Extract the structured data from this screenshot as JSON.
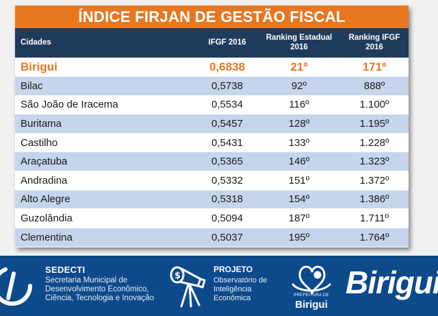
{
  "title": "ÍNDICE FIRJAN DE GESTÃO FISCAL",
  "columns": {
    "cidades": "Cidades",
    "ifgf": "IFGF 2016",
    "ranking_estadual": [
      "Ranking Estadual",
      "2016"
    ],
    "ranking_ifgf": [
      "Ranking IFGF",
      "2016"
    ]
  },
  "rows": [
    {
      "city": "Birigui",
      "ifgf": "0,6838",
      "estadual": "21º",
      "ranking": "171º"
    },
    {
      "city": "Bilac",
      "ifgf": "0,5738",
      "estadual": "92º",
      "ranking": "888º"
    },
    {
      "city": "São João de Iracema",
      "ifgf": "0,5534",
      "estadual": "116º",
      "ranking": "1.100º"
    },
    {
      "city": "Buritama",
      "ifgf": "0,5457",
      "estadual": "128º",
      "ranking": "1.195º"
    },
    {
      "city": "Castilho",
      "ifgf": "0,5431",
      "estadual": "133º",
      "ranking": "1.228º"
    },
    {
      "city": "Araçatuba",
      "ifgf": "0,5365",
      "estadual": "146º",
      "ranking": "1.323º"
    },
    {
      "city": "Andradina",
      "ifgf": "0,5332",
      "estadual": "151º",
      "ranking": "1.372º"
    },
    {
      "city": "Alto Alegre",
      "ifgf": "0,5318",
      "estadual": "154º",
      "ranking": "1.386º"
    },
    {
      "city": "Guzolândia",
      "ifgf": "0,5094",
      "estadual": "187º",
      "ranking": "1.711º"
    },
    {
      "city": "Clementina",
      "ifgf": "0,5037",
      "estadual": "195º",
      "ranking": "1.764º"
    }
  ],
  "footer": {
    "sedecti": {
      "title": "SEDECTI",
      "lines": [
        "Secretaria Municipal de",
        "Desenvolvimento Econômico,",
        "Ciência, Tecnologia e Inovação"
      ]
    },
    "projeto": {
      "title": "PROJETO",
      "lines": [
        "Observatório de",
        "Inteligência",
        "Econômica"
      ]
    },
    "prefeitura": {
      "small": "PREFEITURA DE",
      "name": "Birigui"
    },
    "brand": "Birigui"
  },
  "colors": {
    "title_bg": "#e87722",
    "header_bg": "#1f3b5c",
    "row_alt": "#c6d5ec",
    "highlight_text": "#e87722",
    "footer_bg": "#0d4a8c"
  },
  "icons": [
    "sedecti-logo-icon",
    "telescope-icon",
    "prefeitura-seal-icon"
  ]
}
